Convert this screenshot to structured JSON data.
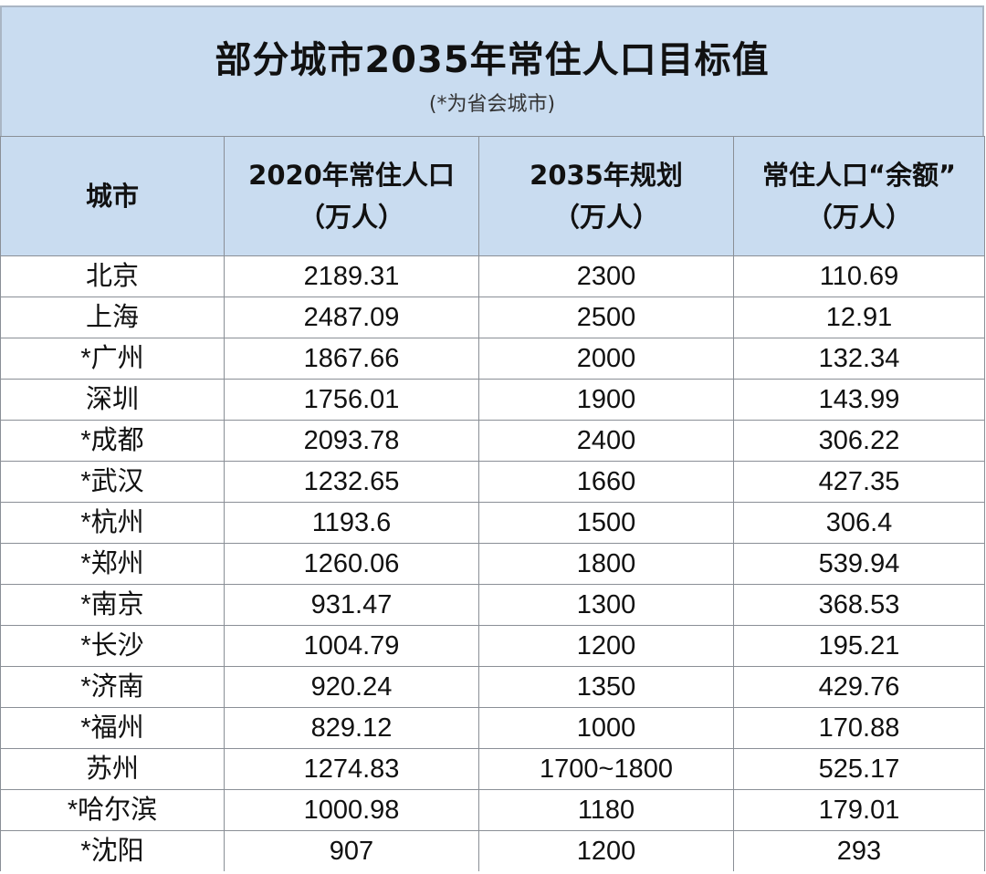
{
  "header": {
    "title": "部分城市2035年常住人口目标值",
    "subtitle": "(*为省会城市)"
  },
  "table": {
    "columns": [
      {
        "line1": "城市",
        "line2": ""
      },
      {
        "line1": "2020年常住人口",
        "line2": "（万人）"
      },
      {
        "line1": "2035年规划",
        "line2": "（万人）"
      },
      {
        "line1": "常住人口“余额”",
        "line2": "（万人）"
      }
    ],
    "rows": [
      [
        "北京",
        "2189.31",
        "2300",
        "110.69"
      ],
      [
        "上海",
        "2487.09",
        "2500",
        "12.91"
      ],
      [
        "*广州",
        "1867.66",
        "2000",
        "132.34"
      ],
      [
        "深圳",
        "1756.01",
        "1900",
        "143.99"
      ],
      [
        "*成都",
        "2093.78",
        "2400",
        "306.22"
      ],
      [
        "*武汉",
        "1232.65",
        "1660",
        "427.35"
      ],
      [
        "*杭州",
        "1193.6",
        "1500",
        "306.4"
      ],
      [
        "*郑州",
        "1260.06",
        "1800",
        "539.94"
      ],
      [
        "*南京",
        "931.47",
        "1300",
        "368.53"
      ],
      [
        "*长沙",
        "1004.79",
        "1200",
        "195.21"
      ],
      [
        "*济南",
        "920.24",
        "1350",
        "429.76"
      ],
      [
        "*福州",
        "829.12",
        "1000",
        "170.88"
      ],
      [
        "苏州",
        "1274.83",
        "1700~1800",
        "525.17"
      ],
      [
        "*哈尔滨",
        "1000.98",
        "1180",
        "179.01"
      ],
      [
        "*沈阳",
        "907",
        "1200",
        "293"
      ]
    ]
  }
}
